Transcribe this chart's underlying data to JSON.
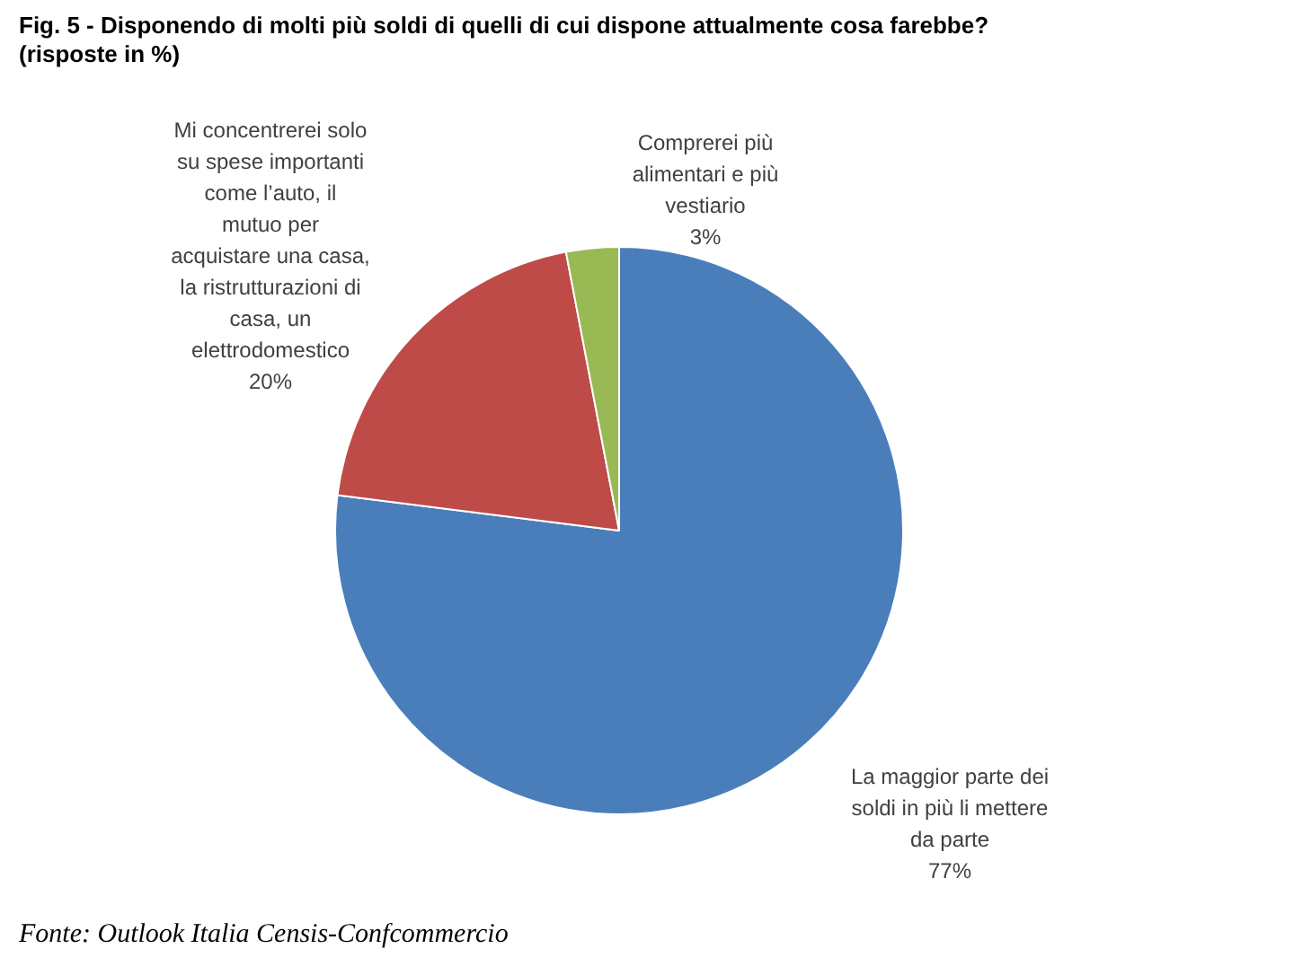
{
  "chart_data": {
    "type": "pie",
    "title": "Fig. 5 - Disponendo di molti più soldi di quelli di cui dispone attualmente cosa farebbe?",
    "subtitle": "(risposte in %)",
    "categories": [
      "La maggior parte dei\nsoldi in più li mettere\nda parte",
      "Mi concentrerei solo\nsu spese importanti\ncome l’auto, il\nmutuo per\nacquistare una casa,\nla ristrutturazioni di\ncasa, un\nelettrodomestico",
      "Comprerei più\nalimentari e più\nvestiario"
    ],
    "values": [
      77,
      20,
      3
    ],
    "colors": [
      "#4a7ebb",
      "#be4b48",
      "#98b954"
    ],
    "value_labels": [
      "77%",
      "20%",
      "3%"
    ],
    "annotations": [
      "Fonte: Outlook Italia Censis-Confcommercio"
    ]
  }
}
